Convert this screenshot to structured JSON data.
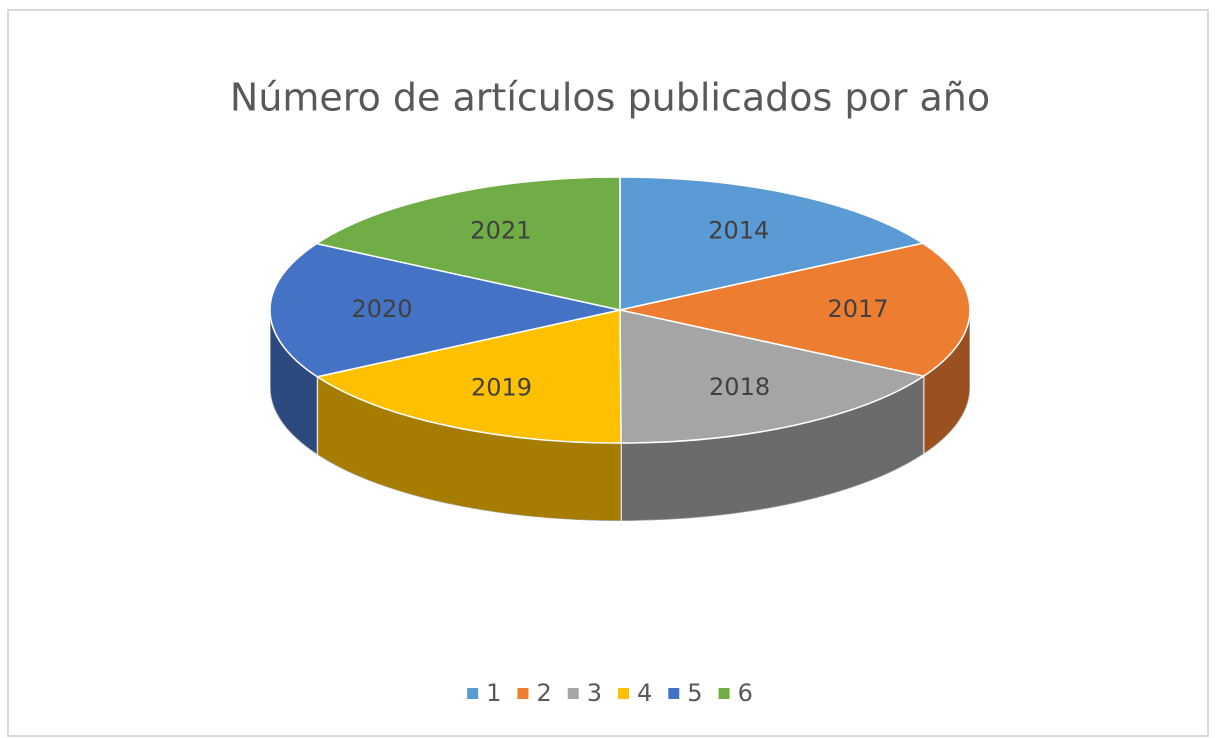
{
  "chart_data": {
    "type": "pie",
    "title": "Número de artículos publicados por año",
    "categories": [
      "1",
      "2",
      "3",
      "4",
      "5",
      "6"
    ],
    "values": [
      2014,
      2017,
      2018,
      2019,
      2020,
      2021
    ],
    "colors": [
      "#5b9bd5",
      "#ed7d31",
      "#a5a5a5",
      "#ffc000",
      "#4472c4",
      "#70ad47"
    ],
    "legend": "bottom"
  }
}
